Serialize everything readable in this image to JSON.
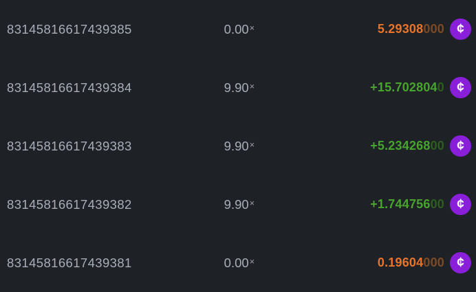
{
  "labels": {
    "multiplier_suffix": "×",
    "coin_symbol": "¢"
  },
  "colors": {
    "background": "#1e2126",
    "text_muted": "#a8aeb9",
    "win": "#47a52d",
    "win_dim": "#2d5e20",
    "loss": "#e8752b",
    "loss_dim": "#7c4a25",
    "coin_purple": "#8a1fd9"
  },
  "rows": [
    {
      "bet_id": "83145816617439385",
      "multiplier": "0.00",
      "payout_main": "5.29308",
      "payout_dim": "000",
      "payout_color": "loss"
    },
    {
      "bet_id": "83145816617439384",
      "multiplier": "9.90",
      "payout_main": "+15.702804",
      "payout_dim": "0",
      "payout_color": "win"
    },
    {
      "bet_id": "83145816617439383",
      "multiplier": "9.90",
      "payout_main": "+5.234268",
      "payout_dim": "00",
      "payout_color": "win"
    },
    {
      "bet_id": "83145816617439382",
      "multiplier": "9.90",
      "payout_main": "+1.744756",
      "payout_dim": "00",
      "payout_color": "win"
    },
    {
      "bet_id": "83145816617439381",
      "multiplier": "0.00",
      "payout_main": "0.19604",
      "payout_dim": "000",
      "payout_color": "loss"
    }
  ]
}
